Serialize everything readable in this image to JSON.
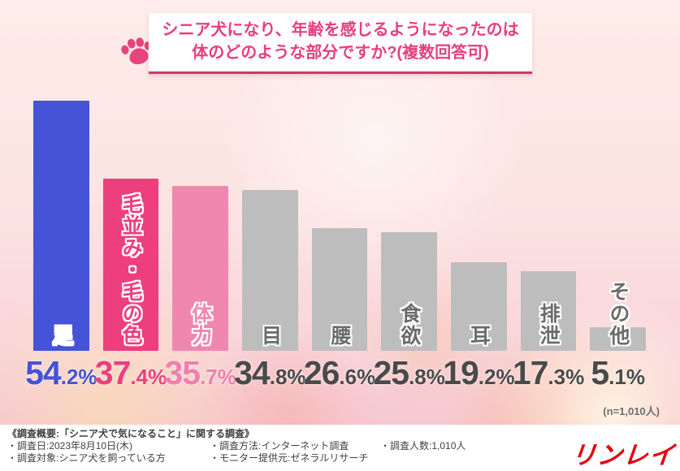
{
  "header": {
    "title_line1": "シニア犬になり、年齢を感じるようになったのは",
    "title_line2": "体のどのような部分ですか?(複数回答可)",
    "accent_color": "#e73e7e",
    "underline_color": "#d6336c",
    "paw_icon_color": "#e8437c"
  },
  "chart_data": {
    "type": "bar",
    "title": "シニア犬になり、年齢を感じるようになったのは体のどのような部分ですか?(複数回答可)",
    "categories": [
      "足",
      "毛並み・毛の色",
      "体力",
      "目",
      "腰",
      "食欲",
      "耳",
      "排泄",
      "その他"
    ],
    "values": [
      54.2,
      37.4,
      35.7,
      34.8,
      26.6,
      25.8,
      19.2,
      17.3,
      5.1
    ],
    "value_labels": [
      "54.2%",
      "37.4%",
      "35.7%",
      "34.8%",
      "26.6%",
      "25.8%",
      "19.2%",
      "17.3%",
      "5.1%"
    ],
    "bar_colors": [
      "#4553d8",
      "#ed3e7d",
      "#f087af",
      "#bdbdbd",
      "#bdbdbd",
      "#bdbdbd",
      "#bdbdbd",
      "#bdbdbd",
      "#bdbdbd"
    ],
    "label_colors": [
      "#ffffff",
      "#ed3e7d",
      "#f087af",
      "#6b6b6b",
      "#6b6b6b",
      "#6b6b6b",
      "#6b6b6b",
      "#6b6b6b",
      "#6b6b6b"
    ],
    "value_colors": [
      "#4553d8",
      "#ed3e7d",
      "#ef7fae",
      "#4a4a4a",
      "#4a4a4a",
      "#4a4a4a",
      "#4a4a4a",
      "#4a4a4a",
      "#4a4a4a"
    ],
    "xlabel": "",
    "ylabel": "",
    "ylim": [
      0,
      57
    ],
    "grid": false,
    "legend": false,
    "sample_note": "(n=1,010人)"
  },
  "footnote": {
    "n_label": "(n=1,010人)"
  },
  "footer": {
    "overview": "《調査概要:「シニア犬で気になること」に関する調査》",
    "col1": [
      "・調査日:2023年8月10日(木)",
      "・調査対象:シニア犬を飼っている方"
    ],
    "col2": [
      "・調査方法:インターネット調査",
      "・モニター提供元:ゼネラルリサーチ"
    ],
    "col3": [
      "・調査人数:1,010人"
    ],
    "logo_text": "リンレイ",
    "logo_color": "#e60012"
  }
}
